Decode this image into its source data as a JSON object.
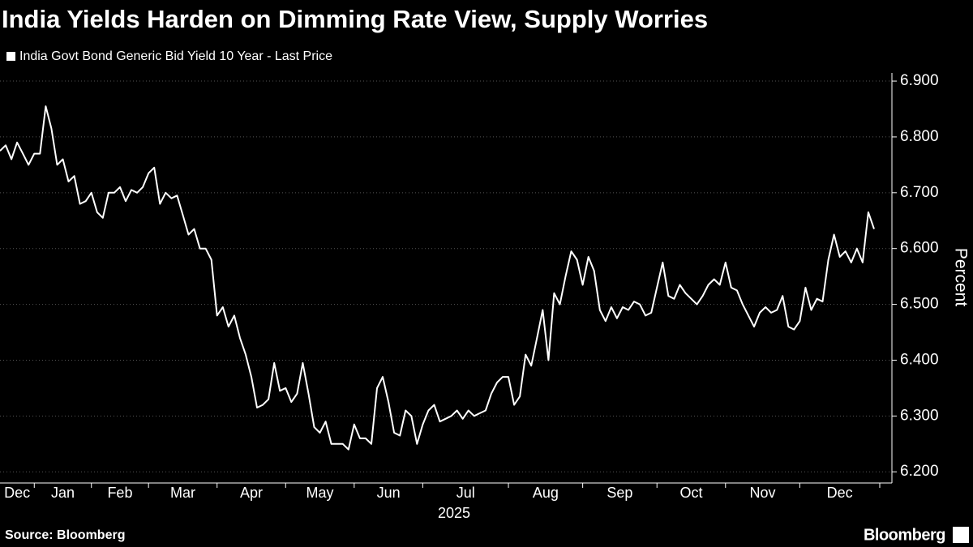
{
  "chart_data": {
    "type": "line",
    "title": "India Yields Harden on Dimming Rate View, Supply Worries",
    "series": [
      {
        "name": "India Govt Bond Generic Bid Yield 10 Year - Last Price",
        "color": "#ffffff",
        "values": [
          6.775,
          6.785,
          6.76,
          6.79,
          6.77,
          6.75,
          6.77,
          6.77,
          6.855,
          6.815,
          6.75,
          6.76,
          6.72,
          6.73,
          6.68,
          6.685,
          6.7,
          6.665,
          6.655,
          6.7,
          6.7,
          6.71,
          6.685,
          6.705,
          6.7,
          6.71,
          6.735,
          6.745,
          6.68,
          6.7,
          6.69,
          6.695,
          6.66,
          6.625,
          6.635,
          6.6,
          6.6,
          6.58,
          6.48,
          6.495,
          6.46,
          6.48,
          6.44,
          6.41,
          6.37,
          6.315,
          6.32,
          6.33,
          6.395,
          6.345,
          6.35,
          6.325,
          6.34,
          6.395,
          6.34,
          6.28,
          6.27,
          6.29,
          6.25,
          6.25,
          6.25,
          6.24,
          6.285,
          6.26,
          6.26,
          6.25,
          6.35,
          6.37,
          6.325,
          6.27,
          6.265,
          6.31,
          6.3,
          6.25,
          6.285,
          6.31,
          6.32,
          6.29,
          6.295,
          6.3,
          6.31,
          6.295,
          6.31,
          6.3,
          6.305,
          6.31,
          6.34,
          6.36,
          6.37,
          6.37,
          6.32,
          6.335,
          6.41,
          6.39,
          6.44,
          6.49,
          6.4,
          6.52,
          6.5,
          6.55,
          6.595,
          6.58,
          6.535,
          6.585,
          6.56,
          6.49,
          6.47,
          6.495,
          6.475,
          6.495,
          6.49,
          6.505,
          6.5,
          6.48,
          6.485,
          6.53,
          6.575,
          6.515,
          6.51,
          6.535,
          6.52,
          6.51,
          6.5,
          6.515,
          6.535,
          6.545,
          6.535,
          6.575,
          6.53,
          6.525,
          6.5,
          6.48,
          6.46,
          6.485,
          6.495,
          6.485,
          6.49,
          6.515,
          6.46,
          6.455,
          6.47,
          6.53,
          6.49,
          6.51,
          6.505,
          6.58,
          6.625,
          6.585,
          6.595,
          6.575,
          6.6,
          6.575,
          6.665,
          6.635
        ]
      }
    ],
    "xlim": [
      0,
      154
    ],
    "xticks": [
      {
        "value": 0,
        "label": "Dec"
      },
      {
        "value": 6,
        "label": "Jan"
      },
      {
        "value": 16,
        "label": "Feb"
      },
      {
        "value": 26,
        "label": "Mar"
      },
      {
        "value": 38,
        "label": "Apr"
      },
      {
        "value": 50,
        "label": "May"
      },
      {
        "value": 62,
        "label": "Jun"
      },
      {
        "value": 74,
        "label": "Jul"
      },
      {
        "value": 89,
        "label": "Aug"
      },
      {
        "value": 102,
        "label": "Sep"
      },
      {
        "value": 115,
        "label": "Oct"
      },
      {
        "value": 127,
        "label": "Nov"
      },
      {
        "value": 140,
        "label": "Dec"
      }
    ],
    "x_group_label": "2025",
    "ylim": [
      6.18,
      6.92
    ],
    "yticks": [
      {
        "value": 6.2,
        "label": "6.200"
      },
      {
        "value": 6.3,
        "label": "6.300"
      },
      {
        "value": 6.4,
        "label": "6.400"
      },
      {
        "value": 6.5,
        "label": "6.500"
      },
      {
        "value": 6.6,
        "label": "6.600"
      },
      {
        "value": 6.7,
        "label": "6.700"
      },
      {
        "value": 6.8,
        "label": "6.800"
      },
      {
        "value": 6.9,
        "label": "6.900"
      }
    ],
    "ylabel": "Percent",
    "grid": true,
    "source": "Source: Bloomberg",
    "brand": "Bloomberg"
  }
}
